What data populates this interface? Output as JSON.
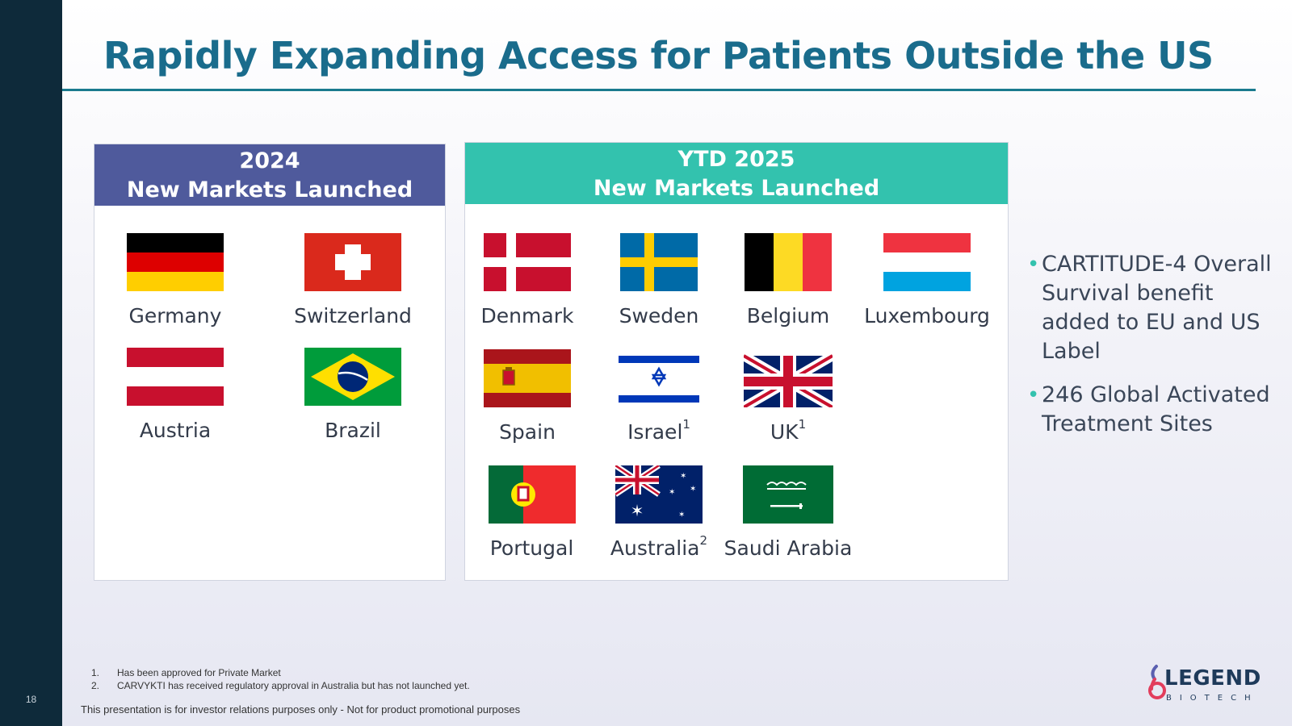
{
  "page_number": "18",
  "title": "Rapidly Expanding Access for Patients Outside the US",
  "panel_2024": {
    "header_line1": "2024",
    "header_line2": "New Markets Launched",
    "countries": [
      {
        "name": "Germany",
        "sup": "",
        "flag": "germany-flag"
      },
      {
        "name": "Switzerland",
        "sup": "",
        "flag": "switzerland-flag"
      },
      {
        "name": "Austria",
        "sup": "",
        "flag": "austria-flag"
      },
      {
        "name": "Brazil",
        "sup": "",
        "flag": "brazil-flag"
      }
    ]
  },
  "panel_2025": {
    "header_line1": "YTD 2025",
    "header_line2": "New Markets Launched",
    "countries": [
      {
        "name": "Denmark",
        "sup": "",
        "flag": "denmark-flag"
      },
      {
        "name": "Sweden",
        "sup": "",
        "flag": "sweden-flag"
      },
      {
        "name": "Belgium",
        "sup": "",
        "flag": "belgium-flag"
      },
      {
        "name": "Luxembourg",
        "sup": "",
        "flag": "luxembourg-flag"
      },
      {
        "name": "Spain",
        "sup": "",
        "flag": "spain-flag"
      },
      {
        "name": "Israel",
        "sup": "1",
        "flag": "israel-flag"
      },
      {
        "name": "UK",
        "sup": "1",
        "flag": "uk-flag"
      },
      {
        "name": "Portugal",
        "sup": "",
        "flag": "portugal-flag"
      },
      {
        "name": "Australia",
        "sup": "2",
        "flag": "australia-flag"
      },
      {
        "name": "Saudi Arabia",
        "sup": "",
        "flag": "saudi-arabia-flag"
      }
    ]
  },
  "bullets": [
    "CARTITUDE-4 Overall Survival benefit added to EU and US Label",
    "246 Global Activated Treatment Sites"
  ],
  "footnotes": [
    {
      "num": "1.",
      "text": "Has been approved for Private Market"
    },
    {
      "num": "2.",
      "text": "CARVYKTI has received regulatory approval in Australia but has not launched yet."
    }
  ],
  "disclaimer": "This presentation is for investor relations purposes only - Not for product promotional purposes",
  "logo": {
    "word": "LEGEND",
    "sub": "BIOTECH"
  },
  "colors": {
    "sidebar": "#0e2a3a",
    "title": "#1a6c8c",
    "header_2024": "#4f5a9c",
    "header_2025": "#33c2ae",
    "bullet": "#33c2ae"
  }
}
